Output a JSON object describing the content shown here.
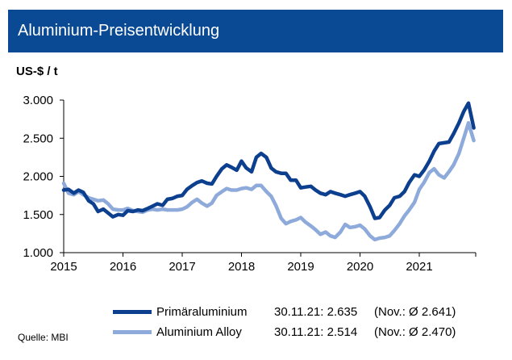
{
  "header": {
    "title": "Aluminium-Preisentwicklung"
  },
  "unit": "US-$ / t",
  "source": "Quelle: MBI",
  "legend": [
    {
      "name": "Primäraluminium",
      "date": "30.11.21:",
      "value": "2.635",
      "note": "(Nov.: Ø 2.641)",
      "color": "#0d3f8f"
    },
    {
      "name": "Aluminium Alloy",
      "date": "30.11.21:",
      "value": "2.514",
      "note": "(Nov.: Ø 2.470)",
      "color": "#8eaadb"
    }
  ],
  "chart_data": {
    "type": "line",
    "xlabel": "",
    "ylabel": "US-$ / t",
    "xlim": [
      2015.0,
      2021.92
    ],
    "ylim": [
      1000,
      3000
    ],
    "x_ticks": [
      "2015",
      "2016",
      "2017",
      "2018",
      "2019",
      "2020",
      "2021"
    ],
    "y_ticks": [
      "1.000",
      "1.500",
      "2.000",
      "2.500",
      "3.000"
    ],
    "grid": false,
    "legend_position": "bottom",
    "series": [
      {
        "name": "Primäraluminium",
        "color": "#0d3f8f",
        "x": [
          2015.0,
          2015.08,
          2015.17,
          2015.25,
          2015.33,
          2015.42,
          2015.5,
          2015.58,
          2015.67,
          2015.75,
          2015.83,
          2015.92,
          2016.0,
          2016.08,
          2016.17,
          2016.25,
          2016.33,
          2016.42,
          2016.5,
          2016.58,
          2016.67,
          2016.75,
          2016.83,
          2016.92,
          2017.0,
          2017.08,
          2017.17,
          2017.25,
          2017.33,
          2017.42,
          2017.5,
          2017.58,
          2017.67,
          2017.75,
          2017.83,
          2017.92,
          2018.0,
          2018.08,
          2018.17,
          2018.25,
          2018.33,
          2018.42,
          2018.5,
          2018.58,
          2018.67,
          2018.75,
          2018.83,
          2018.92,
          2019.0,
          2019.08,
          2019.17,
          2019.25,
          2019.33,
          2019.42,
          2019.5,
          2019.58,
          2019.67,
          2019.75,
          2019.83,
          2019.92,
          2020.0,
          2020.08,
          2020.17,
          2020.25,
          2020.33,
          2020.42,
          2020.5,
          2020.58,
          2020.67,
          2020.75,
          2020.83,
          2020.92,
          2021.0,
          2021.08,
          2021.17,
          2021.25,
          2021.33,
          2021.42,
          2021.5,
          2021.58,
          2021.67,
          2021.75,
          2021.83,
          2021.92
        ],
        "values": [
          1820,
          1830,
          1780,
          1820,
          1790,
          1680,
          1640,
          1540,
          1570,
          1520,
          1470,
          1500,
          1490,
          1550,
          1540,
          1560,
          1550,
          1580,
          1610,
          1640,
          1620,
          1700,
          1710,
          1740,
          1750,
          1830,
          1880,
          1920,
          1940,
          1910,
          1900,
          2000,
          2100,
          2150,
          2120,
          2080,
          2200,
          2110,
          2060,
          2250,
          2300,
          2250,
          2110,
          2060,
          2040,
          2040,
          1950,
          1950,
          1850,
          1860,
          1870,
          1820,
          1780,
          1760,
          1800,
          1780,
          1760,
          1740,
          1760,
          1780,
          1800,
          1740,
          1600,
          1450,
          1460,
          1560,
          1620,
          1720,
          1740,
          1800,
          1920,
          2020,
          2000,
          2080,
          2200,
          2330,
          2430,
          2440,
          2450,
          2560,
          2700,
          2850,
          2960,
          2635
        ]
      },
      {
        "name": "Aluminium Alloy",
        "color": "#8eaadb",
        "x": [
          2015.0,
          2015.08,
          2015.17,
          2015.25,
          2015.33,
          2015.42,
          2015.5,
          2015.58,
          2015.67,
          2015.75,
          2015.83,
          2015.92,
          2016.0,
          2016.08,
          2016.17,
          2016.25,
          2016.33,
          2016.42,
          2016.5,
          2016.58,
          2016.67,
          2016.75,
          2016.83,
          2016.92,
          2017.0,
          2017.08,
          2017.17,
          2017.25,
          2017.33,
          2017.42,
          2017.5,
          2017.58,
          2017.67,
          2017.75,
          2017.83,
          2017.92,
          2018.0,
          2018.08,
          2018.17,
          2018.25,
          2018.33,
          2018.42,
          2018.5,
          2018.58,
          2018.67,
          2018.75,
          2018.83,
          2018.92,
          2019.0,
          2019.08,
          2019.17,
          2019.25,
          2019.33,
          2019.42,
          2019.5,
          2019.58,
          2019.67,
          2019.75,
          2019.83,
          2019.92,
          2020.0,
          2020.08,
          2020.17,
          2020.25,
          2020.33,
          2020.42,
          2020.5,
          2020.58,
          2020.67,
          2020.75,
          2020.83,
          2020.92,
          2021.0,
          2021.08,
          2021.17,
          2021.25,
          2021.33,
          2021.42,
          2021.5,
          2021.58,
          2021.67,
          2021.75,
          2021.83,
          2021.92
        ],
        "values": [
          1910,
          1780,
          1760,
          1800,
          1760,
          1720,
          1700,
          1680,
          1690,
          1640,
          1570,
          1560,
          1560,
          1580,
          1550,
          1540,
          1530,
          1560,
          1570,
          1560,
          1570,
          1560,
          1560,
          1560,
          1570,
          1600,
          1660,
          1700,
          1650,
          1610,
          1650,
          1750,
          1800,
          1840,
          1820,
          1820,
          1840,
          1850,
          1830,
          1880,
          1880,
          1800,
          1740,
          1620,
          1450,
          1380,
          1410,
          1430,
          1460,
          1400,
          1350,
          1300,
          1240,
          1270,
          1220,
          1200,
          1270,
          1370,
          1330,
          1340,
          1360,
          1310,
          1220,
          1170,
          1190,
          1200,
          1220,
          1290,
          1380,
          1480,
          1560,
          1660,
          1830,
          1920,
          2050,
          2100,
          2020,
          1980,
          2060,
          2150,
          2300,
          2500,
          2700,
          2470
        ]
      }
    ]
  }
}
